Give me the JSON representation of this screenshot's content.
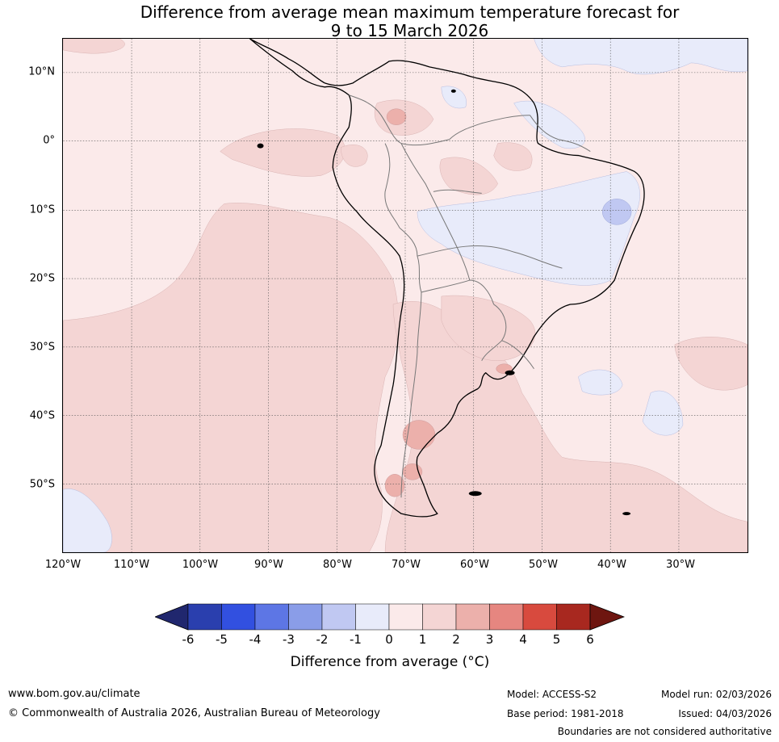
{
  "title": {
    "line1": "Difference from average mean maximum temperature forecast for",
    "line2": "9 to 15 March 2026"
  },
  "map": {
    "lat_ticks": [
      "10°N",
      "0°",
      "10°S",
      "20°S",
      "30°S",
      "40°S",
      "50°S"
    ],
    "lon_ticks": [
      "120°W",
      "110°W",
      "100°W",
      "90°W",
      "80°W",
      "70°W",
      "60°W",
      "50°W",
      "40°W",
      "30°W"
    ]
  },
  "colorbar": {
    "ticks": [
      "-6",
      "-5",
      "-4",
      "-3",
      "-2",
      "-1",
      "0",
      "1",
      "2",
      "3",
      "4",
      "5",
      "6"
    ],
    "colors": [
      "#20276e",
      "#2a3fae",
      "#3250e0",
      "#5d76e5",
      "#8a9de8",
      "#c0c8f2",
      "#e8ebfa",
      "#fbeaea",
      "#f4d5d4",
      "#ecb0ab",
      "#e68680",
      "#d84a3e",
      "#a8281f",
      "#6e1610"
    ],
    "label": "Difference from average (°C)"
  },
  "footer": {
    "website": "www.bom.gov.au/climate",
    "copyright": "© Commonwealth of Australia 2026, Australian Bureau of Meteorology",
    "model": "Model: ACCESS-S2",
    "base_period": "Base period: 1981-2018",
    "model_run": "Model run: 02/03/2026",
    "issued": "Issued: 04/03/2026",
    "disclaimer": "Boundaries are not considered authoritative"
  }
}
